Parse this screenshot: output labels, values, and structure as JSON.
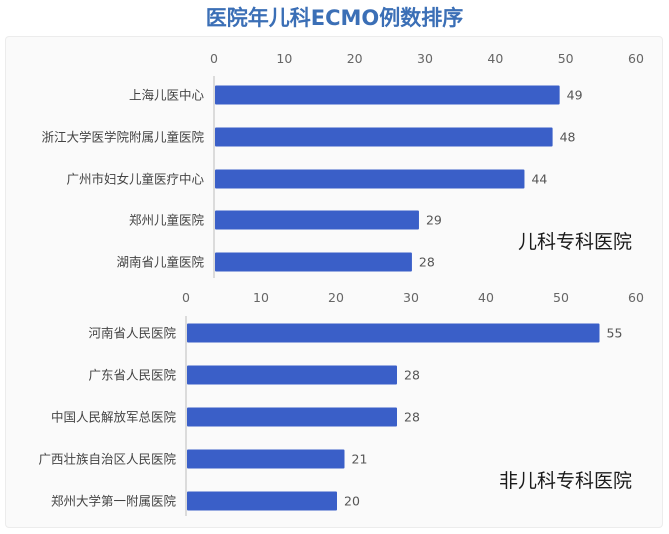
{
  "title": "医院年儿科ECMO例数排序",
  "chart_data": [
    {
      "type": "bar",
      "orientation": "horizontal",
      "annotation": "儿科专科医院",
      "categories": [
        "上海儿医中心",
        "浙江大学医学院附属儿童医院",
        "广州市妇女儿童医疗中心",
        "郑州儿童医院",
        "湖南省儿童医院"
      ],
      "values": [
        49,
        48,
        44,
        29,
        28
      ],
      "xlim": [
        0,
        60
      ],
      "ticks": [
        0,
        10,
        20,
        30,
        40,
        50,
        60
      ],
      "tick_labels": [
        "0",
        "10",
        "20",
        "30",
        "40",
        "50",
        "60"
      ],
      "axis_position": "top",
      "bar_color": "#3a5fc8"
    },
    {
      "type": "bar",
      "orientation": "horizontal",
      "annotation": "非儿科专科医院",
      "categories": [
        "河南省人民医院",
        "广东省人民医院",
        "中国人民解放军总医院",
        "广西壮族自治区人民医院",
        "郑州大学第一附属医院"
      ],
      "values": [
        55,
        28,
        28,
        21,
        20
      ],
      "xlim": [
        0,
        60
      ],
      "ticks": [
        0,
        10,
        20,
        30,
        40,
        50,
        60
      ],
      "tick_labels": [
        "0",
        "10",
        "20",
        "30",
        "40",
        "50",
        "60"
      ],
      "axis_position": "top",
      "bar_color": "#3a5fc8"
    }
  ]
}
